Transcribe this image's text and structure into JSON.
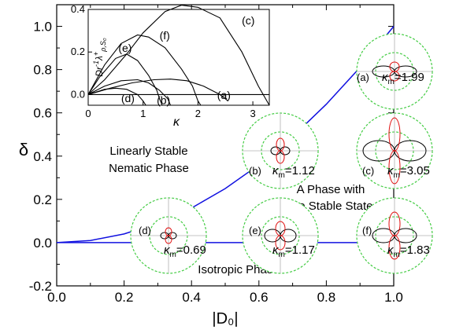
{
  "chart_data": {
    "type": "line",
    "xlabel": "|D₀|",
    "ylabel": "δ",
    "xlim": [
      0.0,
      1.0
    ],
    "ylim": [
      -0.2,
      1.1
    ],
    "x_ticks": [
      "0.0",
      "0.2",
      "0.4",
      "0.6",
      "0.8",
      "1.0"
    ],
    "y_ticks": [
      "-0.2",
      "0.0",
      "0.2",
      "0.4",
      "0.6",
      "0.8",
      "1.0"
    ],
    "series": [
      {
        "color": "#1010e0",
        "x": [
          0.0,
          0.1,
          0.2,
          0.3,
          0.4,
          0.5,
          0.6,
          0.7,
          0.8,
          0.9,
          1.0
        ],
        "y": [
          0.0,
          0.01,
          0.04,
          0.09,
          0.16,
          0.25,
          0.36,
          0.49,
          0.64,
          0.81,
          1.0
        ]
      },
      {
        "color": "#1010e0",
        "x": [
          0.0,
          1.0
        ],
        "y": [
          0.0,
          0.0
        ]
      }
    ],
    "region_labels": [
      {
        "lines": [
          "Linearly Stable",
          "Nematic Phase"
        ]
      },
      {
        "lines": [
          "A Phase with",
          "No Stable State"
        ]
      },
      {
        "lines": [
          "Isotropic Phase"
        ]
      }
    ],
    "polar_insets": [
      {
        "label": "(a)",
        "kappa": "κ",
        "sub": "m",
        "value": "=1.99"
      },
      {
        "label": "(b)",
        "kappa": "κ",
        "sub": "m",
        "value": "=1.12"
      },
      {
        "label": "(c)",
        "kappa": "κ",
        "sub": "m",
        "value": "=3.05"
      },
      {
        "label": "(d)",
        "kappa": "κ",
        "sub": "m",
        "value": "=0.69"
      },
      {
        "label": "(e)",
        "kappa": "κ",
        "sub": "m",
        "value": "=1.17"
      },
      {
        "label": "(f)",
        "kappa": "κ",
        "sub": "m",
        "value": "=1.83"
      }
    ],
    "inset": {
      "xlabel": "κ",
      "ylabel_parts": {
        "base": "Dr",
        "sup": "-1",
        "lambda": "λ",
        "lambda_sup": "+",
        "sub": "ρ,S₀"
      },
      "xlim": [
        0,
        3.3
      ],
      "ylim": [
        -0.05,
        0.4
      ],
      "x_ticks": [
        "0",
        "1",
        "2",
        "3"
      ],
      "y_ticks": [
        "0.0",
        "0.2",
        "0.4"
      ],
      "curves": [
        {
          "label": "(a)",
          "points": [
            [
              0,
              0
            ],
            [
              0.4,
              0.03
            ],
            [
              0.8,
              0.055
            ],
            [
              1.2,
              0.07
            ],
            [
              1.5,
              0.073
            ],
            [
              1.8,
              0.065
            ],
            [
              2.1,
              0.04
            ],
            [
              2.4,
              0.0
            ],
            [
              2.55,
              -0.03
            ]
          ]
        },
        {
          "label": "(b)",
          "points": [
            [
              0,
              0
            ],
            [
              0.3,
              0.04
            ],
            [
              0.6,
              0.065
            ],
            [
              0.9,
              0.07
            ],
            [
              1.1,
              0.055
            ],
            [
              1.3,
              0.02
            ],
            [
              1.45,
              -0.02
            ],
            [
              1.5,
              -0.05
            ]
          ]
        },
        {
          "label": "(c)",
          "points": [
            [
              0,
              0
            ],
            [
              0.3,
              0.07
            ],
            [
              0.7,
              0.19
            ],
            [
              1.0,
              0.29
            ],
            [
              1.4,
              0.39
            ],
            [
              1.7,
              0.42
            ],
            [
              2.0,
              0.41
            ],
            [
              2.4,
              0.36
            ],
            [
              2.8,
              0.2
            ],
            [
              3.1,
              0.04
            ],
            [
              3.3,
              -0.05
            ]
          ]
        },
        {
          "label": "(d)",
          "points": [
            [
              0,
              0
            ],
            [
              0.3,
              0.025
            ],
            [
              0.5,
              0.03
            ],
            [
              0.7,
              0.025
            ],
            [
              0.9,
              0.0
            ],
            [
              1.0,
              -0.03
            ],
            [
              1.05,
              -0.05
            ]
          ]
        },
        {
          "label": "(e)",
          "points": [
            [
              0,
              0
            ],
            [
              0.2,
              0.08
            ],
            [
              0.5,
              0.17
            ],
            [
              0.7,
              0.19
            ],
            [
              0.9,
              0.16
            ],
            [
              1.1,
              0.09
            ],
            [
              1.25,
              0.02
            ],
            [
              1.3,
              -0.02
            ],
            [
              1.35,
              -0.05
            ]
          ]
        },
        {
          "label": "(f)",
          "points": [
            [
              0,
              0
            ],
            [
              0.3,
              0.14
            ],
            [
              0.6,
              0.24
            ],
            [
              0.9,
              0.28
            ],
            [
              1.1,
              0.27
            ],
            [
              1.4,
              0.22
            ],
            [
              1.7,
              0.12
            ],
            [
              1.9,
              0.04
            ],
            [
              2.0,
              -0.03
            ],
            [
              2.05,
              -0.05
            ]
          ]
        }
      ]
    }
  }
}
